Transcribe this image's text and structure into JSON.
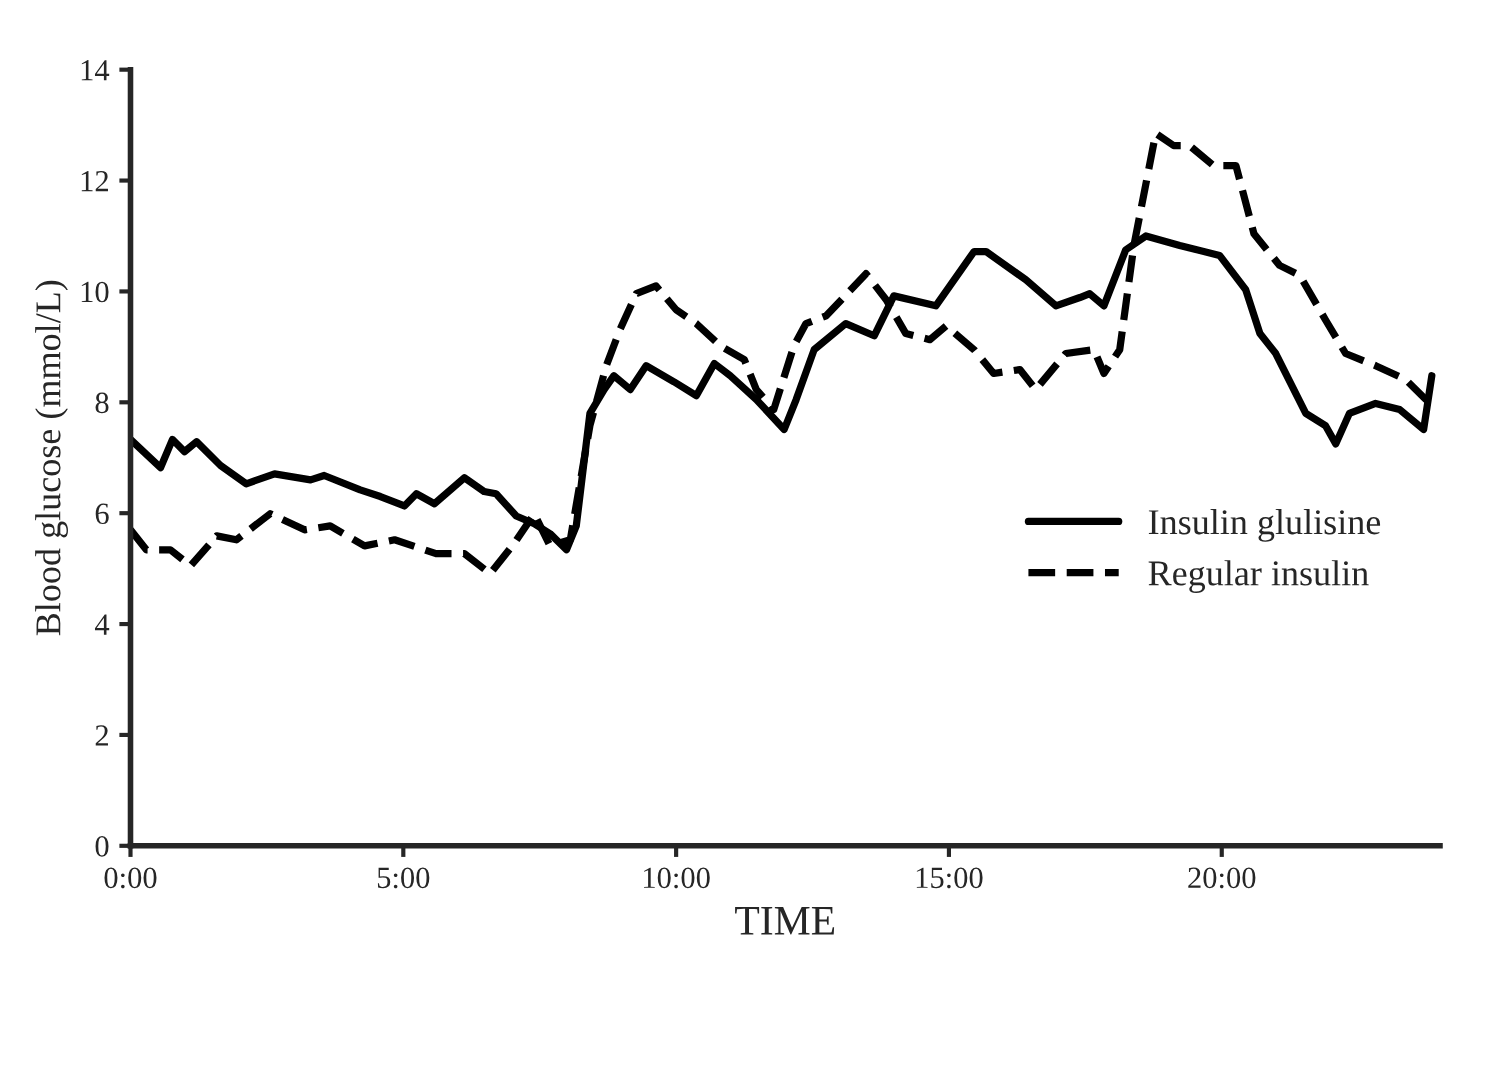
{
  "chart_data": {
    "type": "line",
    "xlabel": "TIME",
    "ylabel": "Blood glucose (mmol/L)",
    "xlim": [
      0,
      24
    ],
    "ylim": [
      0,
      14
    ],
    "xticks": [
      {
        "value": 0,
        "label": "0:00"
      },
      {
        "value": 5,
        "label": "5:00"
      },
      {
        "value": 10,
        "label": "10:00"
      },
      {
        "value": 15,
        "label": "15:00"
      },
      {
        "value": 20,
        "label": "20:00"
      }
    ],
    "yticks": [
      0,
      2,
      4,
      6,
      8,
      10,
      12,
      14
    ],
    "legend": "right",
    "grid": false,
    "marker": "none",
    "series": [
      {
        "name": "Insulin glulisine",
        "color": "#000000",
        "line_style": "solid",
        "x": [
          0,
          0.55,
          0.77,
          0.99,
          1.21,
          1.65,
          2.12,
          2.64,
          3.3,
          3.55,
          4.21,
          4.58,
          5.02,
          5.24,
          5.57,
          6.12,
          6.48,
          6.7,
          7.07,
          7.4,
          7.69,
          7.99,
          8.17,
          8.42,
          8.68,
          8.86,
          9.16,
          9.45,
          9.96,
          10.37,
          10.7,
          10.99,
          11.47,
          11.98,
          12.2,
          12.53,
          13.11,
          13.63,
          13.99,
          14.76,
          15.46,
          15.68,
          16.41,
          16.96,
          17.4,
          17.58,
          17.84,
          18.24,
          18.61,
          19.23,
          19.96,
          20.44,
          20.7,
          20.99,
          21.54,
          21.9,
          22.09,
          22.34,
          22.82,
          23.26,
          23.7,
          23.85
        ],
        "values": [
          7.33,
          6.82,
          7.33,
          7.11,
          7.29,
          6.86,
          6.53,
          6.71,
          6.6,
          6.68,
          6.42,
          6.3,
          6.13,
          6.35,
          6.17,
          6.64,
          6.39,
          6.35,
          5.95,
          5.81,
          5.63,
          5.34,
          5.77,
          7.8,
          8.23,
          8.48,
          8.23,
          8.66,
          8.37,
          8.12,
          8.7,
          8.48,
          8.05,
          7.51,
          8.05,
          8.95,
          9.42,
          9.2,
          9.92,
          9.74,
          10.72,
          10.72,
          10.21,
          9.74,
          9.89,
          9.96,
          9.74,
          10.75,
          11.0,
          10.83,
          10.65,
          10.03,
          9.24,
          8.88,
          7.8,
          7.58,
          7.25,
          7.8,
          7.98,
          7.87,
          7.51,
          8.48
        ]
      },
      {
        "name": "Regular insulin",
        "color": "#000000",
        "line_style": "dashed",
        "x": [
          0,
          0.29,
          0.73,
          1.1,
          1.58,
          1.94,
          2.56,
          3.19,
          3.66,
          4.29,
          4.84,
          5.6,
          6.12,
          6.59,
          7.03,
          7.4,
          7.69,
          8.06,
          8.42,
          8.72,
          8.97,
          9.27,
          9.63,
          10.0,
          10.37,
          10.81,
          11.25,
          11.47,
          11.79,
          12.16,
          12.38,
          12.75,
          13.48,
          13.85,
          14.21,
          14.65,
          14.95,
          15.46,
          15.82,
          16.3,
          16.59,
          17.14,
          17.66,
          17.84,
          18.13,
          18.39,
          18.79,
          19.12,
          19.41,
          19.85,
          20.26,
          20.59,
          21.06,
          21.43,
          21.9,
          22.27,
          22.82,
          23.37,
          23.74,
          23.88
        ],
        "values": [
          5.7,
          5.34,
          5.34,
          5.05,
          5.59,
          5.52,
          5.99,
          5.7,
          5.77,
          5.41,
          5.52,
          5.27,
          5.27,
          4.91,
          5.45,
          5.99,
          5.41,
          5.52,
          7.58,
          8.66,
          9.31,
          9.96,
          10.1,
          9.67,
          9.42,
          9.02,
          8.77,
          8.23,
          7.87,
          9.02,
          9.42,
          9.56,
          10.32,
          9.85,
          9.24,
          9.13,
          9.38,
          8.95,
          8.52,
          8.59,
          8.23,
          8.88,
          8.95,
          8.52,
          8.95,
          10.83,
          12.85,
          12.63,
          12.63,
          12.27,
          12.27,
          11.04,
          10.47,
          10.29,
          9.49,
          8.88,
          8.66,
          8.41,
          8.05,
          8.05
        ]
      }
    ]
  }
}
